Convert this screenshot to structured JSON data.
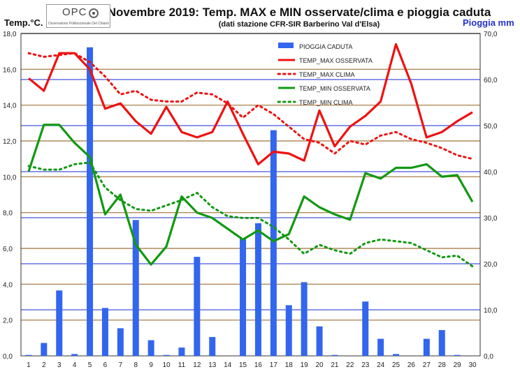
{
  "chart_data": {
    "type": "bar+line",
    "title": "Novembre 2019: Temp. MAX e MIN osservate/clima e pioggia caduta",
    "subtitle": "(dati stazione CFR-SIR  Barberino Val d'Elsa)",
    "ylabel_left": "Temp.°C.",
    "ylabel_right": "Pioggia mm",
    "ylim_left": [
      0,
      18
    ],
    "ylim_right": [
      0,
      70
    ],
    "left_ticks": [
      "0,0",
      "2,0",
      "4,0",
      "6,0",
      "8,0",
      "10,0",
      "12,0",
      "14,0",
      "16,0",
      "18,0"
    ],
    "right_ticks": [
      "0,0",
      "10,0",
      "20,0",
      "30,0",
      "40,0",
      "50,0",
      "60,0",
      "70,0"
    ],
    "categories": [
      "1",
      "2",
      "3",
      "4",
      "5",
      "6",
      "7",
      "8",
      "9",
      "10",
      "11",
      "12",
      "13",
      "14",
      "15",
      "16",
      "17",
      "18",
      "19",
      "20",
      "21",
      "22",
      "23",
      "24",
      "25",
      "26",
      "27",
      "28",
      "29",
      "30"
    ],
    "legend_position": "top-right",
    "grid": true,
    "series": [
      {
        "name": "PIOGGIA CADUTA",
        "type": "bar",
        "axis": "right",
        "color": "#3366ee",
        "values": [
          0.2,
          2.8,
          14.2,
          0.4,
          67.0,
          10.4,
          6.0,
          29.5,
          3.4,
          0.2,
          1.8,
          21.5,
          4.1,
          0.0,
          25.5,
          28.8,
          49.0,
          11.0,
          16.0,
          6.4,
          0.2,
          0.0,
          11.8,
          3.7,
          0.4,
          0.0,
          3.7,
          5.6,
          0.2,
          0.0
        ]
      },
      {
        "name": "TEMP_MAX OSSERVATA",
        "type": "line",
        "axis": "left",
        "color": "#ee1111",
        "dash": false,
        "values": [
          15.5,
          14.8,
          16.9,
          16.9,
          16.0,
          13.8,
          14.1,
          13.1,
          12.4,
          13.9,
          12.5,
          12.2,
          12.5,
          14.2,
          12.4,
          10.7,
          11.4,
          11.3,
          10.9,
          13.7,
          11.7,
          12.8,
          13.4,
          14.2,
          17.4,
          15.2,
          12.2,
          12.5,
          13.1,
          13.6
        ]
      },
      {
        "name": "TEMP_MAX CLIMA",
        "type": "line",
        "axis": "left",
        "color": "#ee1111",
        "dash": true,
        "values": [
          16.9,
          16.7,
          16.8,
          16.9,
          16.4,
          15.6,
          14.6,
          14.8,
          14.3,
          14.2,
          14.2,
          14.7,
          14.6,
          14.1,
          13.3,
          14.0,
          13.5,
          12.8,
          12.1,
          11.9,
          11.3,
          12.0,
          11.8,
          12.3,
          12.5,
          12.1,
          11.9,
          11.6,
          11.2,
          11.0
        ]
      },
      {
        "name": "TEMP_MIN OSSERVATA",
        "type": "line",
        "axis": "left",
        "color": "#119911",
        "dash": false,
        "values": [
          10.3,
          12.9,
          12.9,
          11.9,
          11.1,
          7.9,
          9.0,
          6.2,
          5.1,
          6.1,
          8.9,
          8.0,
          7.7,
          7.1,
          6.5,
          7.0,
          6.4,
          6.8,
          8.9,
          8.3,
          7.9,
          7.6,
          10.2,
          9.9,
          10.5,
          10.5,
          10.7,
          10.0,
          10.1,
          8.6
        ]
      },
      {
        "name": "TEMP_MIN CLIMA",
        "type": "line",
        "axis": "left",
        "color": "#119911",
        "dash": true,
        "values": [
          10.6,
          10.4,
          10.4,
          10.7,
          10.8,
          9.4,
          8.7,
          8.2,
          8.1,
          8.4,
          8.7,
          9.1,
          8.3,
          7.8,
          7.7,
          7.7,
          7.2,
          6.5,
          5.7,
          6.2,
          5.9,
          5.7,
          6.3,
          6.5,
          6.4,
          6.3,
          5.9,
          5.5,
          5.6,
          5.0
        ]
      }
    ]
  },
  "logo": {
    "main": "OPC",
    "sub": "Osservatorio Polifunzionale Del Chianti"
  }
}
